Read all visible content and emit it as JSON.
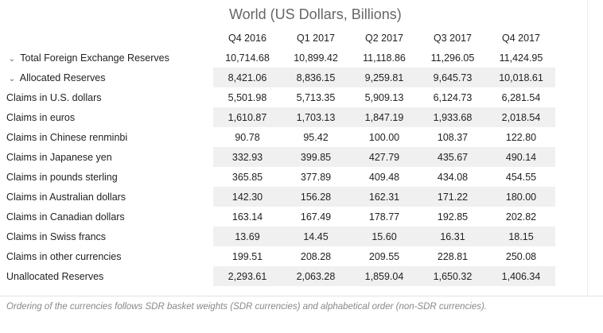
{
  "title": "World (US Dollars, Billions)",
  "columns": [
    "Q4 2016",
    "Q1 2017",
    "Q2 2017",
    "Q3 2017",
    "Q4 2017"
  ],
  "rows": [
    {
      "label": "Total Foreign Exchange Reserves",
      "values": [
        "10,714.68",
        "10,899.42",
        "11,118.86",
        "11,296.05",
        "11,424.95"
      ],
      "icon": "chevron-down-icon"
    },
    {
      "label": "Allocated Reserves",
      "values": [
        "8,421.06",
        "8,836.15",
        "9,259.81",
        "9,645.73",
        "10,018.61"
      ],
      "icon": "chevron-down-icon"
    },
    {
      "label": "Claims in U.S. dollars",
      "values": [
        "5,501.98",
        "5,713.35",
        "5,909.13",
        "6,124.73",
        "6,281.54"
      ]
    },
    {
      "label": "Claims in euros",
      "values": [
        "1,610.87",
        "1,703.13",
        "1,847.19",
        "1,933.68",
        "2,018.54"
      ]
    },
    {
      "label": "Claims in Chinese renminbi",
      "values": [
        "90.78",
        "95.42",
        "100.00",
        "108.37",
        "122.80"
      ]
    },
    {
      "label": "Claims in Japanese yen",
      "values": [
        "332.93",
        "399.85",
        "427.79",
        "435.67",
        "490.14"
      ]
    },
    {
      "label": "Claims in pounds sterling",
      "values": [
        "365.85",
        "377.89",
        "409.48",
        "434.08",
        "454.55"
      ]
    },
    {
      "label": "Claims in Australian dollars",
      "values": [
        "142.30",
        "156.28",
        "162.31",
        "171.22",
        "180.00"
      ]
    },
    {
      "label": "Claims in Canadian dollars",
      "values": [
        "163.14",
        "167.49",
        "178.77",
        "192.85",
        "202.82"
      ]
    },
    {
      "label": "Claims in Swiss francs",
      "values": [
        "13.69",
        "14.45",
        "15.60",
        "16.31",
        "18.15"
      ]
    },
    {
      "label": "Claims in other currencies",
      "values": [
        "199.51",
        "208.28",
        "209.55",
        "228.81",
        "250.08"
      ]
    },
    {
      "label": "Unallocated Reserves",
      "values": [
        "2,293.61",
        "2,063.28",
        "1,859.04",
        "1,650.32",
        "1,406.34"
      ]
    }
  ],
  "footnote": "Ordering of the currencies follows SDR basket weights (SDR currencies) and alphabetical order (non-SDR currencies)."
}
